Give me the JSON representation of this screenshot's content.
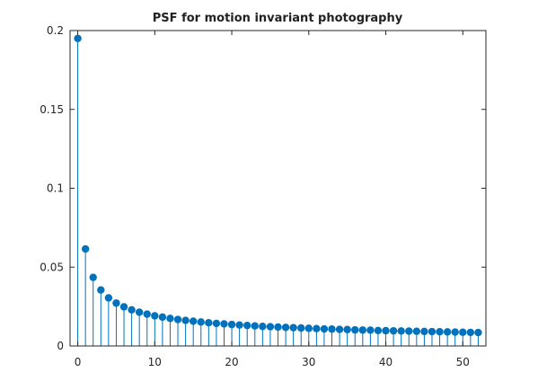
{
  "figure": {
    "title": "PSF for motion invariant photography"
  },
  "colors": {
    "series": "#0072BD",
    "axis": "#262626",
    "background": "#ffffff"
  },
  "chart_data": {
    "type": "stem",
    "title": "PSF for motion invariant photography",
    "xlabel": "",
    "ylabel": "",
    "xlim": [
      -1,
      53
    ],
    "ylim": [
      0,
      0.2
    ],
    "xticks": [
      0,
      10,
      20,
      30,
      40,
      50
    ],
    "xtick_labels": [
      "0",
      "10",
      "20",
      "30",
      "40",
      "50"
    ],
    "yticks": [
      0,
      0.05,
      0.1,
      0.15,
      0.2
    ],
    "ytick_labels": [
      "0",
      "0.05",
      "0.1",
      "0.15",
      "0.2"
    ],
    "grid": false,
    "box": true,
    "x": [
      0,
      1,
      2,
      3,
      4,
      5,
      6,
      7,
      8,
      9,
      10,
      11,
      12,
      13,
      14,
      15,
      16,
      17,
      18,
      19,
      20,
      21,
      22,
      23,
      24,
      25,
      26,
      27,
      28,
      29,
      30,
      31,
      32,
      33,
      34,
      35,
      36,
      37,
      38,
      39,
      40,
      41,
      42,
      43,
      44,
      45,
      46,
      47,
      48,
      49,
      50,
      51,
      52
    ],
    "y": [
      0.195,
      0.0615,
      0.0435,
      0.0355,
      0.0305,
      0.0272,
      0.0248,
      0.0229,
      0.0214,
      0.0202,
      0.0191,
      0.0183,
      0.0175,
      0.0168,
      0.0162,
      0.0157,
      0.0152,
      0.0147,
      0.0143,
      0.014,
      0.0136,
      0.0133,
      0.013,
      0.0127,
      0.0124,
      0.0122,
      0.012,
      0.0118,
      0.0116,
      0.0114,
      0.0112,
      0.011,
      0.0108,
      0.0107,
      0.0105,
      0.0104,
      0.0102,
      0.0101,
      0.01,
      0.0098,
      0.0097,
      0.0096,
      0.0095,
      0.0094,
      0.0093,
      0.0092,
      0.0091,
      0.009,
      0.0089,
      0.0088,
      0.0087,
      0.0086,
      0.0085
    ]
  }
}
